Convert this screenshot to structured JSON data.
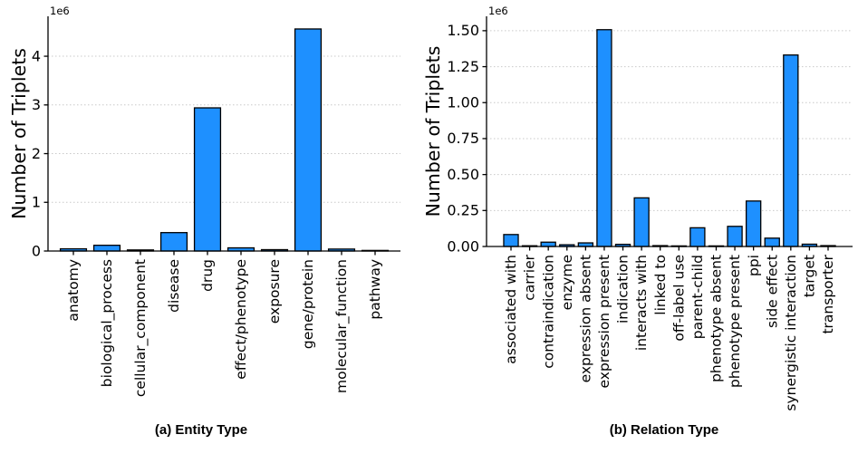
{
  "figure": {
    "background": "#ffffff",
    "colors": {
      "bar_fill": "#1E90FF",
      "bar_edge": "#000000",
      "grid": "#c9c9c9",
      "axis": "#000000",
      "text": "#000000"
    },
    "captions": {
      "a": "(a) Entity Type",
      "b": "(b) Relation Type"
    }
  },
  "chart_data": [
    {
      "id": "entity-type",
      "type": "bar",
      "caption": "(a) Entity Type",
      "title": "",
      "xlabel": "",
      "ylabel": "Number of Triplets",
      "y_offset_label": "1e6",
      "legend": "none",
      "grid": "horizontal dotted",
      "categories": [
        "anatomy",
        "biological_process",
        "cellular_component",
        "disease",
        "drug",
        "effect/phenotype",
        "exposure",
        "gene/protein",
        "molecular_function",
        "pathway"
      ],
      "values": [
        45000,
        118000,
        22000,
        378000,
        2940000,
        65000,
        28000,
        4560000,
        40000,
        12000
      ],
      "ytick_values": [
        0,
        1000000,
        2000000,
        3000000,
        4000000
      ],
      "ytick_labels": [
        "0",
        "1",
        "2",
        "3",
        "4"
      ],
      "ylim": [
        0,
        4820000
      ],
      "bar_color": "#1E90FF"
    },
    {
      "id": "relation-type",
      "type": "bar",
      "caption": "(b) Relation Type",
      "title": "",
      "xlabel": "",
      "ylabel": "Number of Triplets",
      "y_offset_label": "1e6",
      "legend": "none",
      "grid": "horizontal dotted",
      "categories": [
        "associated with",
        "carrier",
        "contraindication",
        "enzyme",
        "expression absent",
        "expression present",
        "indication",
        "interacts with",
        "linked to",
        "off-label use",
        "parent-child",
        "phenotype absent",
        "phenotype present",
        "ppi",
        "side effect",
        "synergistic interaction",
        "target",
        "transporter"
      ],
      "values": [
        83000,
        5000,
        30000,
        12000,
        25000,
        1507000,
        15000,
        338000,
        6000,
        4000,
        130000,
        4000,
        140000,
        316000,
        58000,
        1331000,
        16000,
        6000
      ],
      "ytick_values": [
        0,
        250000,
        500000,
        750000,
        1000000,
        1250000,
        1500000
      ],
      "ytick_labels": [
        "0.00",
        "0.25",
        "0.50",
        "0.75",
        "1.00",
        "1.25",
        "1.50"
      ],
      "ylim": [
        0,
        1600000
      ],
      "bar_color": "#1E90FF"
    }
  ]
}
